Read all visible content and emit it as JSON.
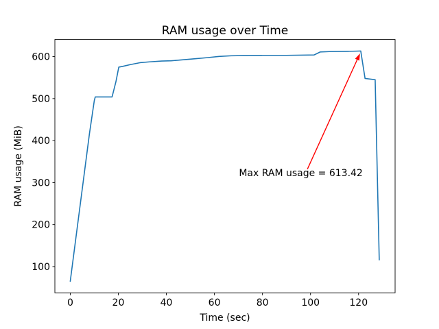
{
  "chart_data": {
    "type": "line",
    "title": "RAM usage over Time",
    "xlabel": "Time (sec)",
    "ylabel": "RAM usage (MiB)",
    "xlim": [
      -6.4,
      135.2
    ],
    "ylim": [
      37.6,
      640.8
    ],
    "xticks": [
      0,
      20,
      40,
      60,
      80,
      100,
      120
    ],
    "yticks": [
      100,
      200,
      300,
      400,
      500,
      600
    ],
    "grid": false,
    "legend": false,
    "max_value": 613.42,
    "series": [
      {
        "name": "RAM usage",
        "color": "#1f77b4",
        "points": [
          [
            0,
            65
          ],
          [
            2,
            153
          ],
          [
            4,
            241
          ],
          [
            6,
            329
          ],
          [
            8,
            417
          ],
          [
            10,
            495
          ],
          [
            10.4,
            504
          ],
          [
            17.4,
            504
          ],
          [
            19,
            540
          ],
          [
            20.2,
            575
          ],
          [
            22,
            577
          ],
          [
            25,
            581
          ],
          [
            29,
            585.5
          ],
          [
            33,
            587.5
          ],
          [
            38,
            589.5
          ],
          [
            42,
            590
          ],
          [
            47,
            592.5
          ],
          [
            52,
            595
          ],
          [
            57,
            597.5
          ],
          [
            62,
            600.5
          ],
          [
            67,
            602
          ],
          [
            72,
            602.5
          ],
          [
            80,
            603
          ],
          [
            90,
            603
          ],
          [
            101.5,
            604
          ],
          [
            104,
            611
          ],
          [
            108,
            612
          ],
          [
            115,
            612.5
          ],
          [
            119,
            613
          ],
          [
            120.9,
            613.42
          ],
          [
            122.7,
            548
          ],
          [
            126.9,
            545
          ],
          [
            128.6,
            116
          ]
        ]
      }
    ],
    "annotation": {
      "label": "Max RAM usage = 613.42",
      "color": "#ff0000",
      "text_xy": [
        70.2,
        315.4
      ],
      "arrow_start": [
        98.7,
        332
      ],
      "arrow_end": [
        120.6,
        607.5
      ]
    }
  }
}
